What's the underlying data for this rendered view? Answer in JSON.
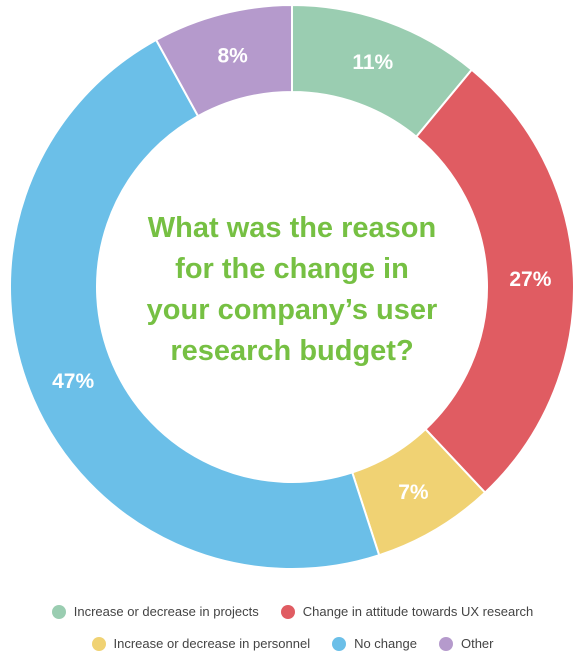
{
  "chart_data": {
    "type": "pie",
    "style": "donut",
    "title_lines": [
      "What was the reason",
      "for the change in",
      "your company’s user",
      "research budget?"
    ],
    "slices": [
      {
        "label": "Increase or decrease in projects",
        "value": 11,
        "value_label": "11%",
        "color": "#9acdb1"
      },
      {
        "label": "Change in attitude towards UX research",
        "value": 27,
        "value_label": "27%",
        "color": "#e05c62"
      },
      {
        "label": "Increase or decrease in personnel",
        "value": 7,
        "value_label": "7%",
        "color": "#f0d273"
      },
      {
        "label": "No change",
        "value": 47,
        "value_label": "47%",
        "color": "#6bbfe8"
      },
      {
        "label": "Other",
        "value": 8,
        "value_label": "8%",
        "color": "#b59acc"
      }
    ],
    "legend": {
      "placement": "bottom",
      "rows": [
        [
          0,
          1
        ],
        [
          2,
          3,
          4
        ]
      ]
    },
    "title_color": "#76c043"
  }
}
